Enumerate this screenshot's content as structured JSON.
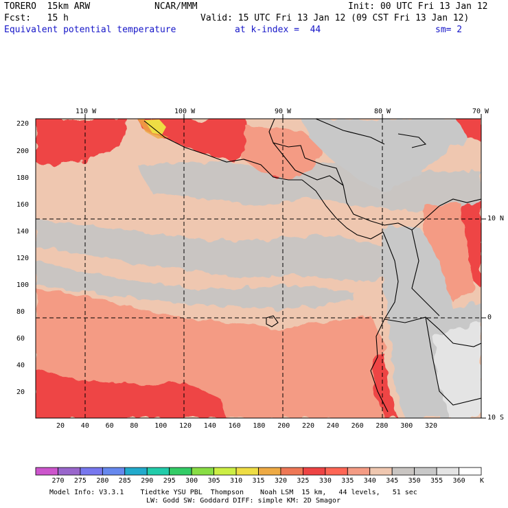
{
  "header": {
    "model": "TORERO  15km ARW",
    "org": "NCAR/MMM",
    "init": "Init: 00 UTC Fri 13 Jan 12",
    "fcst": "Fcst:   15 h",
    "valid": "Valid: 15 UTC Fri 13 Jan 12 (09 CST Fri 13 Jan 12)",
    "field": "Equivalent potential temperature",
    "level": "at k-index =  44",
    "smooth": "sm= 2"
  },
  "axes": {
    "top_lon": [
      "110 W",
      "100 W",
      "90 W",
      "80 W",
      "70 W"
    ],
    "right_lat": [
      "10 N",
      "0",
      "10 S"
    ],
    "left_y": [
      "220",
      "200",
      "180",
      "160",
      "140",
      "120",
      "100",
      "80",
      "60",
      "40",
      "20"
    ],
    "bottom_x": [
      "20",
      "40",
      "60",
      "80",
      "100",
      "120",
      "140",
      "160",
      "180",
      "200",
      "220",
      "240",
      "260",
      "280",
      "300",
      "320"
    ]
  },
  "colorbar": {
    "labels": [
      "270",
      "275",
      "280",
      "285",
      "290",
      "295",
      "300",
      "305",
      "310",
      "315",
      "320",
      "325",
      "330",
      "335",
      "340",
      "345",
      "350",
      "355",
      "360"
    ],
    "unit": "K",
    "colors": [
      "#cc55cc",
      "#9966cc",
      "#7777ee",
      "#6688ee",
      "#22aacc",
      "#22ccaa",
      "#33cc66",
      "#88dd44",
      "#ccee44",
      "#eedd44",
      "#eeaa44",
      "#ee7755",
      "#ee4444",
      "#ff6655",
      "#f49b84",
      "#efc7b0",
      "#c9c5c2",
      "#c8c8c8",
      "#e4e4e4",
      "#ffffff"
    ]
  },
  "footer": {
    "line1": "Model Info: V3.3.1    Tiedtke YSU PBL  Thompson    Noah LSM  15 km,   44 levels,   51 sec",
    "line2": "LW: Godd SW: Goddard DIFF: simple KM: 2D Smagor"
  },
  "legend_colors": {
    "t340": "#efc7b0",
    "t335": "#f49b84",
    "t330": "#ee4444",
    "t345": "#c9c5c2",
    "t355": "#e4e4e4",
    "t315": "#eedd44"
  }
}
